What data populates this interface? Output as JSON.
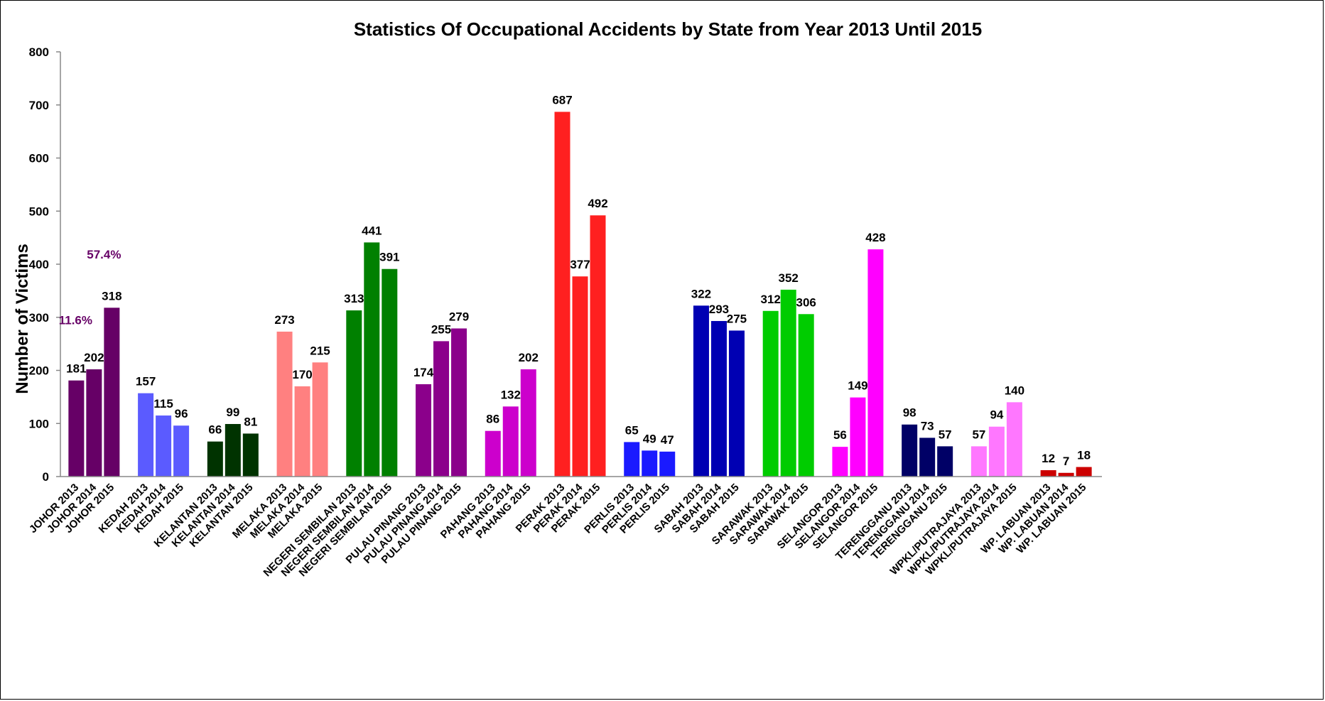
{
  "chart_data": {
    "type": "bar",
    "title": "Statistics Of Occupational Accidents by State from Year 2013 Until 2015",
    "ylabel": "Number of Victims",
    "xlabel": "",
    "ylim": [
      0,
      800
    ],
    "yticks": [
      0,
      100,
      200,
      300,
      400,
      500,
      600,
      700,
      800
    ],
    "grid": false,
    "legend": "none",
    "groups": [
      {
        "color": "#660066",
        "categories": [
          "JOHOR 2013",
          "JOHOR 2014",
          "JOHOR 2015"
        ],
        "values": [
          181,
          202,
          318
        ]
      },
      {
        "color": "#5B5BFF",
        "categories": [
          "KEDAH 2013",
          "KEDAH 2014",
          "KEDAH 2015"
        ],
        "values": [
          157,
          115,
          96
        ]
      },
      {
        "color": "#003300",
        "categories": [
          "KELANTAN 2013",
          "KELANTAN 2014",
          "KELANTAN 2015"
        ],
        "values": [
          66,
          99,
          81
        ]
      },
      {
        "color": "#FF8080",
        "categories": [
          "MELAKA 2013",
          "MELAKA 2014",
          "MELAKA 2015"
        ],
        "values": [
          273,
          170,
          215
        ]
      },
      {
        "color": "#008000",
        "categories": [
          "NEGERI SEMBILAN 2013",
          "NEGERI SEMBILAN 2014",
          "NEGERI SEMBILAN 2015"
        ],
        "values": [
          313,
          441,
          391
        ]
      },
      {
        "color": "#8B008B",
        "categories": [
          "PULAU PINANG 2013",
          "PULAU PINANG 2014",
          "PULAU PINANG 2015"
        ],
        "values": [
          174,
          255,
          279
        ]
      },
      {
        "color": "#CC00CC",
        "categories": [
          "PAHANG 2013",
          "PAHANG 2014",
          "PAHANG 2015"
        ],
        "values": [
          86,
          132,
          202
        ]
      },
      {
        "color": "#FF2020",
        "categories": [
          "PERAK 2013",
          "PERAK 2014",
          "PERAK 2015"
        ],
        "values": [
          687,
          377,
          492
        ]
      },
      {
        "color": "#1A1AFF",
        "categories": [
          "PERLIS 2013",
          "PERLIS 2014",
          "PERLIS 2015"
        ],
        "values": [
          65,
          49,
          47
        ]
      },
      {
        "color": "#0000B3",
        "categories": [
          "SABAH 2013",
          "SABAH 2014",
          "SABAH 2015"
        ],
        "values": [
          322,
          293,
          275
        ]
      },
      {
        "color": "#00CC00",
        "categories": [
          "SARAWAK 2013",
          "SARAWAK 2014",
          "SARAWAK 2015"
        ],
        "values": [
          312,
          352,
          306
        ]
      },
      {
        "color": "#FF00FF",
        "categories": [
          "SELANGOR 2013",
          "SELANGOR 2014",
          "SELANGOR 2015"
        ],
        "values": [
          56,
          149,
          428
        ]
      },
      {
        "color": "#000066",
        "categories": [
          "TERENGGANU 2013",
          "TERENGGANU 2014",
          "TERENGGANU 2015"
        ],
        "values": [
          98,
          73,
          57
        ]
      },
      {
        "color": "#FF77FF",
        "categories": [
          "WPKL/PUTRAJAYA 2013",
          "WPKL/PUTRAJAYA 2014",
          "WPKL/PUTRAJAYA 2015"
        ],
        "values": [
          57,
          94,
          140
        ]
      },
      {
        "color": "#CC0000",
        "categories": [
          "WP. LABUAN 2013",
          "WP. LABUAN 2014",
          "WP. LABUAN 2015"
        ],
        "values": [
          12,
          7,
          18
        ]
      }
    ],
    "annotations": [
      {
        "text": "11.6%",
        "color": "#660066"
      },
      {
        "text": "57.4%",
        "color": "#660066"
      }
    ]
  }
}
